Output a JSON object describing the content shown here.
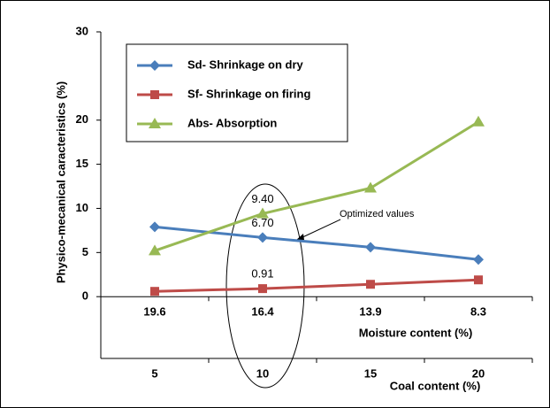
{
  "chart_data": {
    "type": "line",
    "y_label": "Physico-mecanical caracteristics (%)",
    "x_label": "Moisture content (%)",
    "x2_label": "Coal content (%)",
    "categories": [
      "19.6",
      "16.4",
      "13.9",
      "8.3"
    ],
    "categories2": [
      "5",
      "10",
      "15",
      "20"
    ],
    "ylim": [
      -7,
      30
    ],
    "yticks": [
      0,
      5,
      10,
      15,
      20,
      30
    ],
    "series": [
      {
        "name": "Sd- Shrinkage on dry",
        "color": "#4a7ebb",
        "marker": "diamond",
        "values": [
          7.9,
          6.7,
          5.6,
          4.2
        ],
        "value_labels": [
          null,
          "6.70",
          null,
          null
        ]
      },
      {
        "name": "Sf- Shrinkage on firing",
        "color": "#be4b48",
        "marker": "square",
        "values": [
          0.6,
          0.91,
          1.4,
          1.9
        ],
        "value_labels": [
          null,
          "0.91",
          null,
          null
        ]
      },
      {
        "name": "Abs- Absorption",
        "color": "#98b954",
        "marker": "triangle",
        "values": [
          5.2,
          9.4,
          12.3,
          19.8
        ],
        "value_labels": [
          null,
          "9.40",
          null,
          null
        ]
      }
    ],
    "annotation": "Optimized values"
  }
}
